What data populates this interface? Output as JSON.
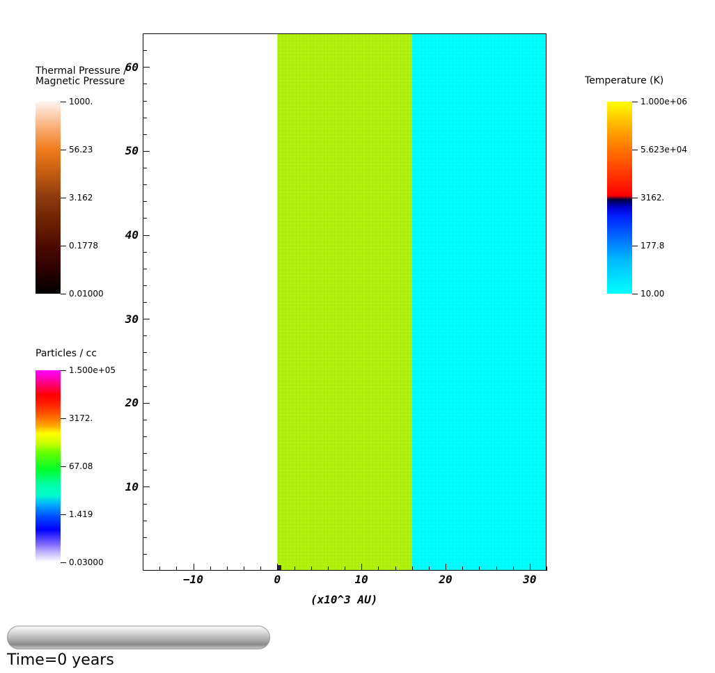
{
  "chart_data": {
    "type": "heatmap",
    "xlabel": "(x10^3 AU)",
    "ylabel": "",
    "xlim": [
      -16,
      32
    ],
    "ylim": [
      0,
      64
    ],
    "x_ticks": [
      -10,
      0,
      10,
      20,
      30
    ],
    "y_ticks": [
      10,
      20,
      30,
      40,
      50,
      60
    ],
    "regions": [
      {
        "x_range": [
          -16,
          0
        ],
        "y_range": [
          0,
          64
        ],
        "color": "#ffffff"
      },
      {
        "x_range": [
          0,
          16
        ],
        "y_range": [
          0,
          64
        ],
        "color": "#b2f20c"
      },
      {
        "x_range": [
          16,
          32
        ],
        "y_range": [
          0,
          64
        ],
        "color": "#00ffff"
      }
    ],
    "colorbars": [
      {
        "id": "pressure",
        "title_lines": [
          "Thermal Pressure /",
          "Magnetic Pressure"
        ],
        "labels": [
          "1000.",
          "56.23",
          "3.162",
          "0.1778",
          "0.01000"
        ],
        "range": [
          0.01,
          1000
        ],
        "scale": "log"
      },
      {
        "id": "density",
        "title_lines": [
          "Particles / cc"
        ],
        "labels": [
          "1.500e+05",
          "3172.",
          "67.08",
          "1.419",
          "0.03000"
        ],
        "range": [
          0.03,
          150000
        ],
        "scale": "log"
      },
      {
        "id": "temperature",
        "title_lines": [
          "Temperature (K)"
        ],
        "labels": [
          "1.000e+06",
          "5.623e+04",
          "3162.",
          "177.8",
          "10.00"
        ],
        "range": [
          10,
          1000000
        ],
        "scale": "log"
      }
    ]
  },
  "time_label": "Time=0 years"
}
